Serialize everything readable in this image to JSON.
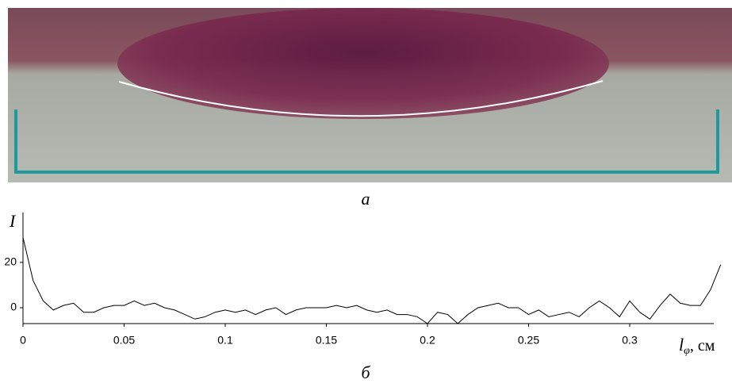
{
  "panel_a_label": "а",
  "chart_data": {
    "type": "line",
    "caption": "б",
    "ylabel": "I",
    "xlabel_symbol": "l",
    "xlabel_subscript": "φ",
    "xlabel_unit": ", см",
    "x": [
      0,
      0.005,
      0.01,
      0.015,
      0.02,
      0.025,
      0.03,
      0.035,
      0.04,
      0.045,
      0.05,
      0.055,
      0.06,
      0.065,
      0.07,
      0.075,
      0.08,
      0.085,
      0.09,
      0.095,
      0.1,
      0.105,
      0.11,
      0.115,
      0.12,
      0.125,
      0.13,
      0.135,
      0.14,
      0.145,
      0.15,
      0.155,
      0.16,
      0.165,
      0.17,
      0.175,
      0.18,
      0.185,
      0.19,
      0.195,
      0.2,
      0.205,
      0.21,
      0.215,
      0.22,
      0.225,
      0.23,
      0.235,
      0.24,
      0.245,
      0.25,
      0.255,
      0.26,
      0.265,
      0.27,
      0.275,
      0.28,
      0.285,
      0.29,
      0.295,
      0.3,
      0.305,
      0.31,
      0.315,
      0.32,
      0.325,
      0.33,
      0.335,
      0.34,
      0.345
    ],
    "series": [
      {
        "color": "#000000",
        "values": [
          31,
          12,
          3,
          -1,
          1,
          2,
          -2,
          -2,
          0,
          1,
          1,
          3,
          1,
          2,
          0,
          -1,
          -3,
          -5,
          -4,
          -2,
          -1,
          -2,
          -1,
          -3,
          -1,
          0,
          -3,
          -1,
          0,
          0,
          0,
          1,
          0,
          1,
          -1,
          -2,
          -1,
          -3,
          -3,
          -4,
          -7,
          -2,
          -3,
          -7,
          -3,
          0,
          1,
          2,
          0,
          0,
          -3,
          -1,
          -4,
          -3,
          -2,
          -4,
          0,
          3,
          0,
          -4,
          3,
          -2,
          -5,
          1,
          6,
          2,
          1,
          1,
          8,
          19
        ]
      }
    ],
    "xlim": [
      0,
      0.34
    ],
    "ylim": [
      -7,
      42
    ],
    "xticks": [
      0,
      0.05,
      0.1,
      0.15,
      0.2,
      0.25,
      0.3
    ],
    "yticks": [
      0,
      20
    ]
  }
}
